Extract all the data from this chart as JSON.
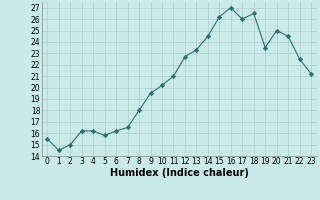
{
  "x": [
    0,
    1,
    2,
    3,
    4,
    5,
    6,
    7,
    8,
    9,
    10,
    11,
    12,
    13,
    14,
    15,
    16,
    17,
    18,
    19,
    20,
    21,
    22,
    23
  ],
  "y": [
    15.5,
    14.5,
    15.0,
    16.2,
    16.2,
    15.8,
    16.2,
    16.5,
    18.0,
    19.5,
    20.2,
    21.0,
    22.7,
    23.3,
    24.5,
    26.2,
    27.0,
    26.0,
    26.5,
    23.5,
    25.0,
    24.5,
    22.5,
    21.2
  ],
  "line_color": "#2d6e6e",
  "marker": "D",
  "marker_size": 2.2,
  "bg_color": "#caeaea",
  "grid_color": "#a8cece",
  "xlabel": "Humidex (Indice chaleur)",
  "ylabel": "",
  "ylim": [
    14,
    27.5
  ],
  "xlim": [
    -0.5,
    23.5
  ],
  "yticks": [
    14,
    15,
    16,
    17,
    18,
    19,
    20,
    21,
    22,
    23,
    24,
    25,
    26,
    27
  ],
  "xticks": [
    0,
    1,
    2,
    3,
    4,
    5,
    6,
    7,
    8,
    9,
    10,
    11,
    12,
    13,
    14,
    15,
    16,
    17,
    18,
    19,
    20,
    21,
    22,
    23
  ],
  "tick_fontsize": 5.5,
  "xlabel_fontsize": 7.0
}
